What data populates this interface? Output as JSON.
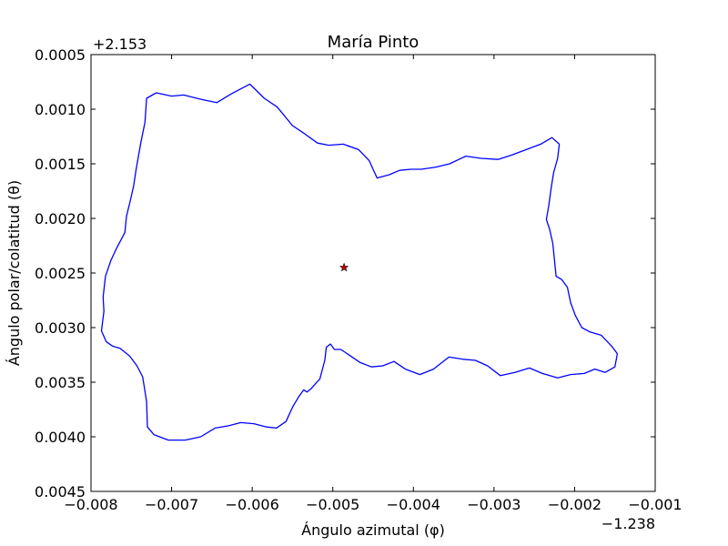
{
  "chart_data": {
    "type": "line",
    "title": "María Pinto",
    "xlabel": "Ángulo azimutal (φ)",
    "ylabel": "Ángulo polar/colatitud (θ)",
    "x_offset_label": "−1.238",
    "y_offset_label": "+2.153",
    "xlim": [
      -0.008,
      -0.001
    ],
    "ylim": [
      0.0045,
      0.0005
    ],
    "y_inverted": true,
    "grid": false,
    "x_ticks": [
      -0.008,
      -0.007,
      -0.006,
      -0.005,
      -0.004,
      -0.003,
      -0.002,
      -0.001
    ],
    "x_tick_labels": [
      "−0.008",
      "−0.007",
      "−0.006",
      "−0.005",
      "−0.004",
      "−0.003",
      "−0.002",
      "−0.001"
    ],
    "y_ticks": [
      0.0005,
      0.001,
      0.0015,
      0.002,
      0.0025,
      0.003,
      0.0035,
      0.004,
      0.0045
    ],
    "y_tick_labels": [
      "0.0005",
      "0.0010",
      "0.0015",
      "0.0020",
      "0.0025",
      "0.0030",
      "0.0035",
      "0.0040",
      "0.0045"
    ],
    "series": [
      {
        "kind": "boundary",
        "color": "#0000ff",
        "x": [
          -0.00719,
          -0.007,
          -0.00685,
          -0.00663,
          -0.00644,
          -0.00626,
          -0.00603,
          -0.00585,
          -0.00569,
          -0.0055,
          -0.00534,
          -0.00519,
          -0.00505,
          -0.00487,
          -0.00468,
          -0.00455,
          -0.00445,
          -0.0043,
          -0.00417,
          -0.00403,
          -0.0039,
          -0.00372,
          -0.00355,
          -0.00335,
          -0.00316,
          -0.00295,
          -0.00278,
          -0.0026,
          -0.00242,
          -0.00228,
          -0.00219,
          -0.00221,
          -0.00226,
          -0.00229,
          -0.00232,
          -0.00235,
          -0.00231,
          -0.00227,
          -0.00225,
          -0.00223,
          -0.00216,
          -0.00209,
          -0.00205,
          -0.00199,
          -0.00191,
          -0.00181,
          -0.00167,
          -0.00154,
          -0.00147,
          -0.0015,
          -0.00162,
          -0.00175,
          -0.00188,
          -0.00205,
          -0.00221,
          -0.0024,
          -0.00256,
          -0.00274,
          -0.00292,
          -0.00308,
          -0.00323,
          -0.00338,
          -0.00356,
          -0.00375,
          -0.00392,
          -0.0041,
          -0.00424,
          -0.00438,
          -0.00452,
          -0.00466,
          -0.00478,
          -0.0049,
          -0.00498,
          -0.00503,
          -0.00508,
          -0.0051,
          -0.00516,
          -0.00521,
          -0.00527,
          -0.00532,
          -0.00536,
          -0.00542,
          -0.0055,
          -0.00558,
          -0.0057,
          -0.00582,
          -0.00598,
          -0.00614,
          -0.0063,
          -0.00646,
          -0.00664,
          -0.00683,
          -0.00704,
          -0.00722,
          -0.0073,
          -0.00731,
          -0.00734,
          -0.00736,
          -0.00743,
          -0.00752,
          -0.00764,
          -0.00773,
          -0.00781,
          -0.00787,
          -0.00784,
          -0.00785,
          -0.00782,
          -0.00775,
          -0.00768,
          -0.00758,
          -0.00756,
          -0.00751,
          -0.00747,
          -0.00744,
          -0.00738,
          -0.00733,
          -0.00731,
          -0.00719
        ],
        "y": [
          0.00085,
          0.00088,
          0.00087,
          0.00091,
          0.00094,
          0.00086,
          0.00077,
          0.0009,
          0.00098,
          0.00115,
          0.00123,
          0.00131,
          0.00133,
          0.00132,
          0.00137,
          0.00147,
          0.00163,
          0.0016,
          0.00156,
          0.00155,
          0.00155,
          0.00153,
          0.0015,
          0.00143,
          0.00145,
          0.00146,
          0.00142,
          0.00137,
          0.00132,
          0.00126,
          0.00132,
          0.00145,
          0.00158,
          0.00172,
          0.00188,
          0.00201,
          0.0021,
          0.00223,
          0.00238,
          0.00253,
          0.00256,
          0.00263,
          0.00277,
          0.00289,
          0.003,
          0.00304,
          0.00307,
          0.00317,
          0.00324,
          0.00336,
          0.00341,
          0.00338,
          0.00342,
          0.00343,
          0.00346,
          0.00342,
          0.00337,
          0.00341,
          0.00344,
          0.00335,
          0.0033,
          0.00329,
          0.00327,
          0.00338,
          0.00343,
          0.00338,
          0.00331,
          0.00335,
          0.00336,
          0.00332,
          0.00326,
          0.0032,
          0.0032,
          0.00315,
          0.00318,
          0.0033,
          0.00347,
          0.00351,
          0.00356,
          0.00359,
          0.00357,
          0.00363,
          0.00373,
          0.00386,
          0.00392,
          0.00391,
          0.00388,
          0.00387,
          0.0039,
          0.00392,
          0.004,
          0.00403,
          0.00403,
          0.00398,
          0.00391,
          0.00368,
          0.00354,
          0.00345,
          0.00335,
          0.00326,
          0.00319,
          0.00317,
          0.00313,
          0.00303,
          0.00285,
          0.00272,
          0.00253,
          0.00238,
          0.00227,
          0.00213,
          0.00198,
          0.00183,
          0.0017,
          0.00155,
          0.0013,
          0.00112,
          0.0009,
          0.00085
        ]
      },
      {
        "kind": "marker",
        "marker": "star",
        "color": "#cc0000",
        "x": [
          -0.00486
        ],
        "y": [
          0.00245
        ]
      }
    ]
  }
}
